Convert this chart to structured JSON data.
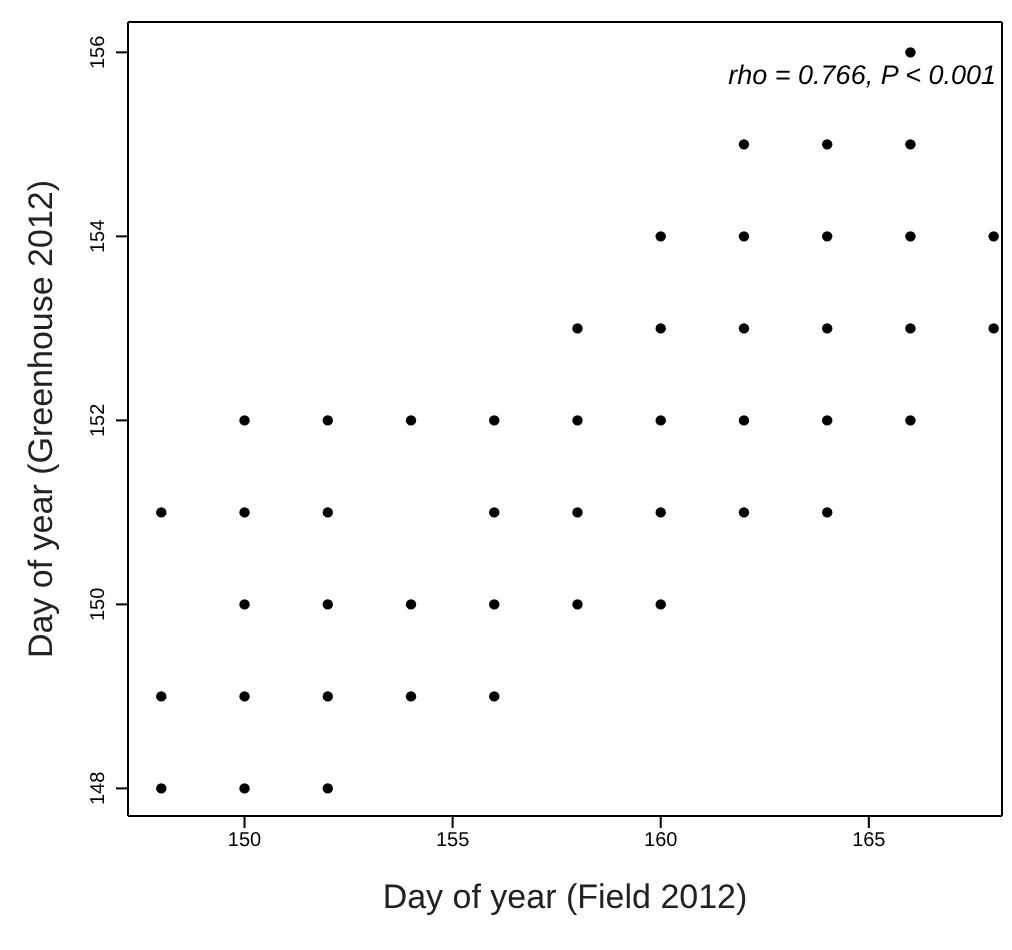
{
  "chart_data": {
    "type": "scatter",
    "xlabel": "Day of year (Field 2012)",
    "ylabel": "Day of year (Greenhouse 2012)",
    "annotations": [
      "rho = 0.766, P < 0.001"
    ],
    "marker": "circle",
    "x": [
      166,
      162,
      164,
      166,
      160,
      162,
      164,
      166,
      168,
      158,
      160,
      162,
      164,
      166,
      168,
      150,
      152,
      154,
      156,
      158,
      160,
      162,
      164,
      166,
      148,
      150,
      152,
      156,
      158,
      160,
      162,
      164,
      150,
      152,
      154,
      156,
      158,
      160,
      148,
      150,
      152,
      154,
      156,
      148,
      150,
      152
    ],
    "values": [
      156,
      155,
      155,
      155,
      154,
      154,
      154,
      154,
      154,
      153,
      153,
      153,
      153,
      153,
      153,
      152,
      152,
      152,
      152,
      152,
      152,
      152,
      152,
      152,
      151,
      151,
      151,
      151,
      151,
      151,
      151,
      151,
      150,
      150,
      150,
      150,
      150,
      150,
      149,
      149,
      149,
      149,
      149,
      148,
      148,
      148
    ],
    "color": "#000000",
    "xlim": [
      147.2,
      168.2
    ],
    "ylim": [
      147.7,
      156.33
    ],
    "xticks": [
      150,
      155,
      160,
      165
    ],
    "yticks": [
      148,
      150,
      152,
      154,
      156
    ]
  }
}
